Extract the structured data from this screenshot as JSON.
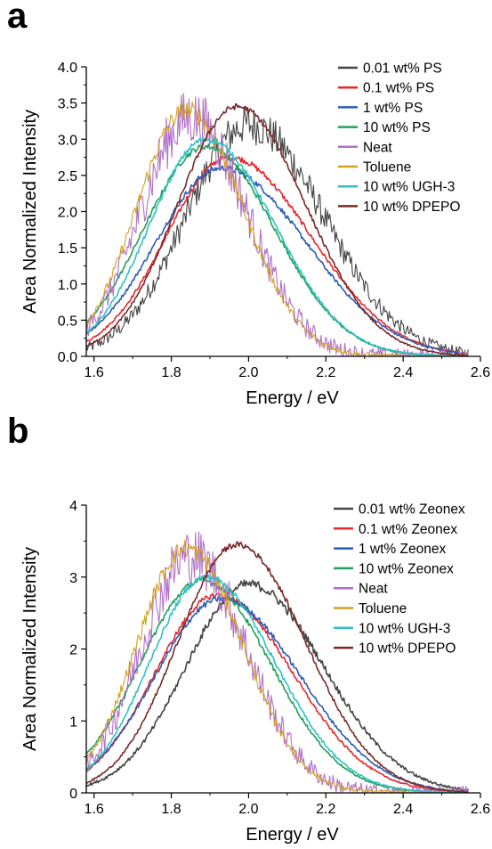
{
  "panels": [
    {
      "letter": "a"
    },
    {
      "letter": "b"
    }
  ],
  "chart_data": [
    {
      "type": "line",
      "xlabel": "Energy / eV",
      "ylabel": "Area Normalized Intensity",
      "xlim": [
        1.58,
        2.6
      ],
      "ylim": [
        0,
        4.0
      ],
      "xticks": [
        "1.6",
        "1.8",
        "2.0",
        "2.2",
        "2.4",
        "2.6"
      ],
      "xtick_values": [
        1.6,
        1.8,
        2.0,
        2.2,
        2.4,
        2.6
      ],
      "yticks": [
        "0.0",
        "0.5",
        "1.0",
        "1.5",
        "2.0",
        "2.5",
        "3.0",
        "3.5",
        "4.0"
      ],
      "ytick_values": [
        0,
        0.5,
        1,
        1.5,
        2,
        2.5,
        3,
        3.5,
        4
      ],
      "legend_position": "top-right",
      "x_range": [
        1.58,
        2.57
      ],
      "series": [
        {
          "name": "0.01 wt% PS",
          "color": "#444444",
          "peak": 2.0,
          "height": 3.2,
          "wl": 0.2,
          "wr": 0.24,
          "noise": 0.2
        },
        {
          "name": "0.1 wt% PS",
          "color": "#e8262b",
          "peak": 1.95,
          "height": 2.75,
          "wl": 0.2,
          "wr": 0.26,
          "noise": 0.03
        },
        {
          "name": "1 wt% PS",
          "color": "#2b5cb8",
          "peak": 1.93,
          "height": 2.6,
          "wl": 0.21,
          "wr": 0.27,
          "noise": 0.03
        },
        {
          "name": "10 wt% PS",
          "color": "#22a05a",
          "peak": 1.89,
          "height": 2.9,
          "wl": 0.2,
          "wr": 0.22,
          "noise": 0.03
        },
        {
          "name": "Neat",
          "color": "#b070c8",
          "peak": 1.85,
          "height": 3.3,
          "wl": 0.16,
          "wr": 0.18,
          "noise": 0.3
        },
        {
          "name": "Toluene",
          "color": "#d4a020",
          "peak": 1.84,
          "height": 3.4,
          "wl": 0.16,
          "wr": 0.18,
          "noise": 0.1
        },
        {
          "name": "10 wt% UGH-3",
          "color": "#2fc2c2",
          "peak": 1.89,
          "height": 3.0,
          "wl": 0.18,
          "wr": 0.22,
          "noise": 0.03
        },
        {
          "name": "10 wt% DPEPO",
          "color": "#7a2a2a",
          "peak": 1.97,
          "height": 3.45,
          "wl": 0.19,
          "wr": 0.22,
          "noise": 0.03
        }
      ]
    },
    {
      "type": "line",
      "xlabel": "Energy / eV",
      "ylabel": "Area Normalized Intensity",
      "xlim": [
        1.58,
        2.6
      ],
      "ylim": [
        0,
        4
      ],
      "xticks": [
        "1.6",
        "1.8",
        "2.0",
        "2.2",
        "2.4",
        "2.6"
      ],
      "xtick_values": [
        1.6,
        1.8,
        2.0,
        2.2,
        2.4,
        2.6
      ],
      "yticks": [
        "0",
        "1",
        "2",
        "3",
        "4"
      ],
      "ytick_values": [
        0,
        1,
        2,
        3,
        4
      ],
      "legend_position": "top-right",
      "x_range": [
        1.58,
        2.57
      ],
      "series": [
        {
          "name": "0.01 wt% Zeonex",
          "color": "#444444",
          "peak": 2.0,
          "height": 2.9,
          "wl": 0.2,
          "wr": 0.24,
          "noise": 0.05
        },
        {
          "name": "0.1 wt% Zeonex",
          "color": "#e8262b",
          "peak": 1.92,
          "height": 2.75,
          "wl": 0.2,
          "wr": 0.24,
          "noise": 0.03
        },
        {
          "name": "1 wt% Zeonex",
          "color": "#2b5cb8",
          "peak": 1.93,
          "height": 2.7,
          "wl": 0.21,
          "wr": 0.25,
          "noise": 0.03
        },
        {
          "name": "10 wt% Zeonex",
          "color": "#22a05a",
          "peak": 1.88,
          "height": 2.95,
          "wl": 0.2,
          "wr": 0.22,
          "noise": 0.03
        },
        {
          "name": "Neat",
          "color": "#b070c8",
          "peak": 1.85,
          "height": 3.3,
          "wl": 0.16,
          "wr": 0.18,
          "noise": 0.3
        },
        {
          "name": "Toluene",
          "color": "#d4a020",
          "peak": 1.84,
          "height": 3.4,
          "wl": 0.16,
          "wr": 0.18,
          "noise": 0.1
        },
        {
          "name": "10 wt% UGH-3",
          "color": "#2fc2c2",
          "peak": 1.89,
          "height": 3.0,
          "wl": 0.18,
          "wr": 0.22,
          "noise": 0.03
        },
        {
          "name": "10 wt% DPEPO",
          "color": "#7a2a2a",
          "peak": 1.97,
          "height": 3.45,
          "wl": 0.19,
          "wr": 0.22,
          "noise": 0.03
        }
      ]
    }
  ]
}
